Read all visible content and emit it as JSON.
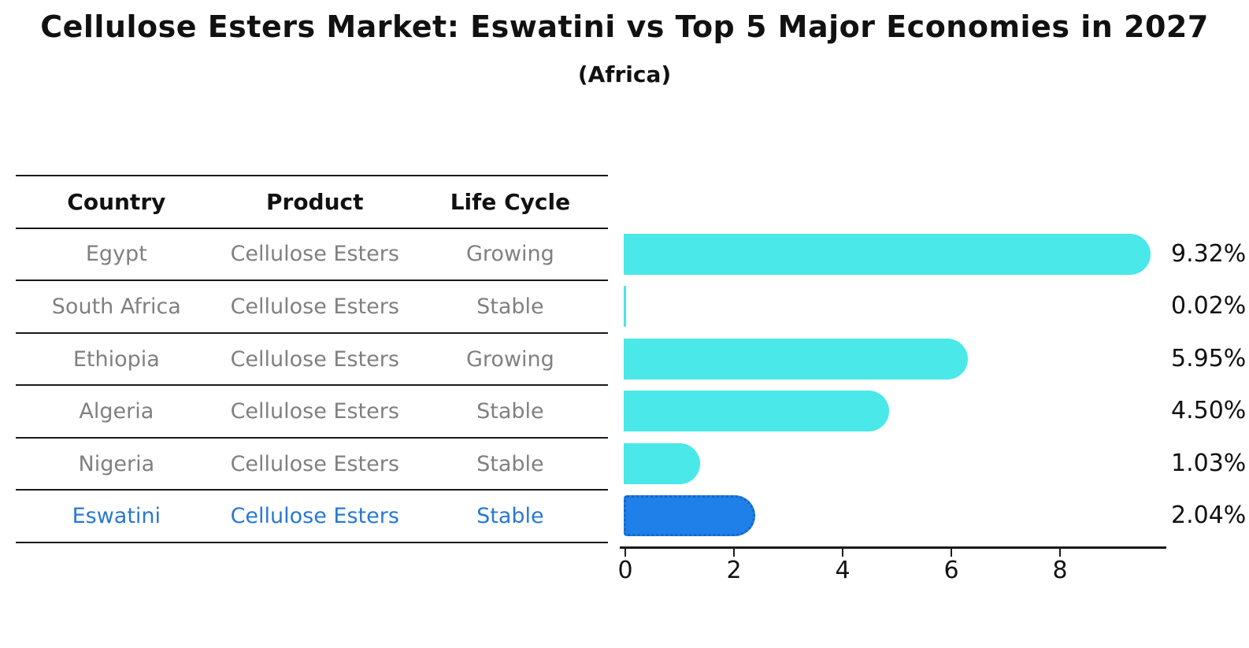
{
  "title": "Cellulose Esters Market: Eswatini vs Top 5 Major Economies in 2027",
  "subtitle": "(Africa)",
  "table": {
    "headers": [
      "Country",
      "Product",
      "Life Cycle"
    ],
    "rows": [
      {
        "country": "Egypt",
        "product": "Cellulose Esters",
        "life_cycle": "Growing",
        "highlight": false
      },
      {
        "country": "South Africa",
        "product": "Cellulose Esters",
        "life_cycle": "Stable",
        "highlight": false
      },
      {
        "country": "Ethiopia",
        "product": "Cellulose Esters",
        "life_cycle": "Growing",
        "highlight": false
      },
      {
        "country": "Algeria",
        "product": "Cellulose Esters",
        "life_cycle": "Stable",
        "highlight": false
      },
      {
        "country": "Nigeria",
        "product": "Cellulose Esters",
        "life_cycle": "Stable",
        "highlight": false
      },
      {
        "country": "Eswatini",
        "product": "Cellulose Esters",
        "life_cycle": "Stable",
        "highlight": true
      }
    ]
  },
  "chart_data": {
    "type": "bar",
    "orientation": "horizontal",
    "title": "Cellulose Esters Market: Eswatini vs Top 5 Major Economies in 2027",
    "subtitle": "(Africa)",
    "categories": [
      "Egypt",
      "South Africa",
      "Ethiopia",
      "Algeria",
      "Nigeria",
      "Eswatini"
    ],
    "values": [
      9.32,
      0.02,
      5.95,
      4.5,
      1.03,
      2.04
    ],
    "value_labels": [
      "9.32%",
      "0.02%",
      "5.95%",
      "4.50%",
      "1.03%",
      "2.04%"
    ],
    "x_ticks": [
      0,
      2,
      4,
      6,
      8
    ],
    "xlim": [
      0,
      10
    ],
    "grid": false,
    "legend": "none",
    "highlight_index": 5
  },
  "colors": {
    "bar": "#4AE8E8",
    "highlight_bar": "#1E80E8",
    "highlight_border": "#1565C8",
    "highlight_text": "#2878D2",
    "table_text": "#808080",
    "header_text": "#111111",
    "line": "#1a1a1a"
  }
}
